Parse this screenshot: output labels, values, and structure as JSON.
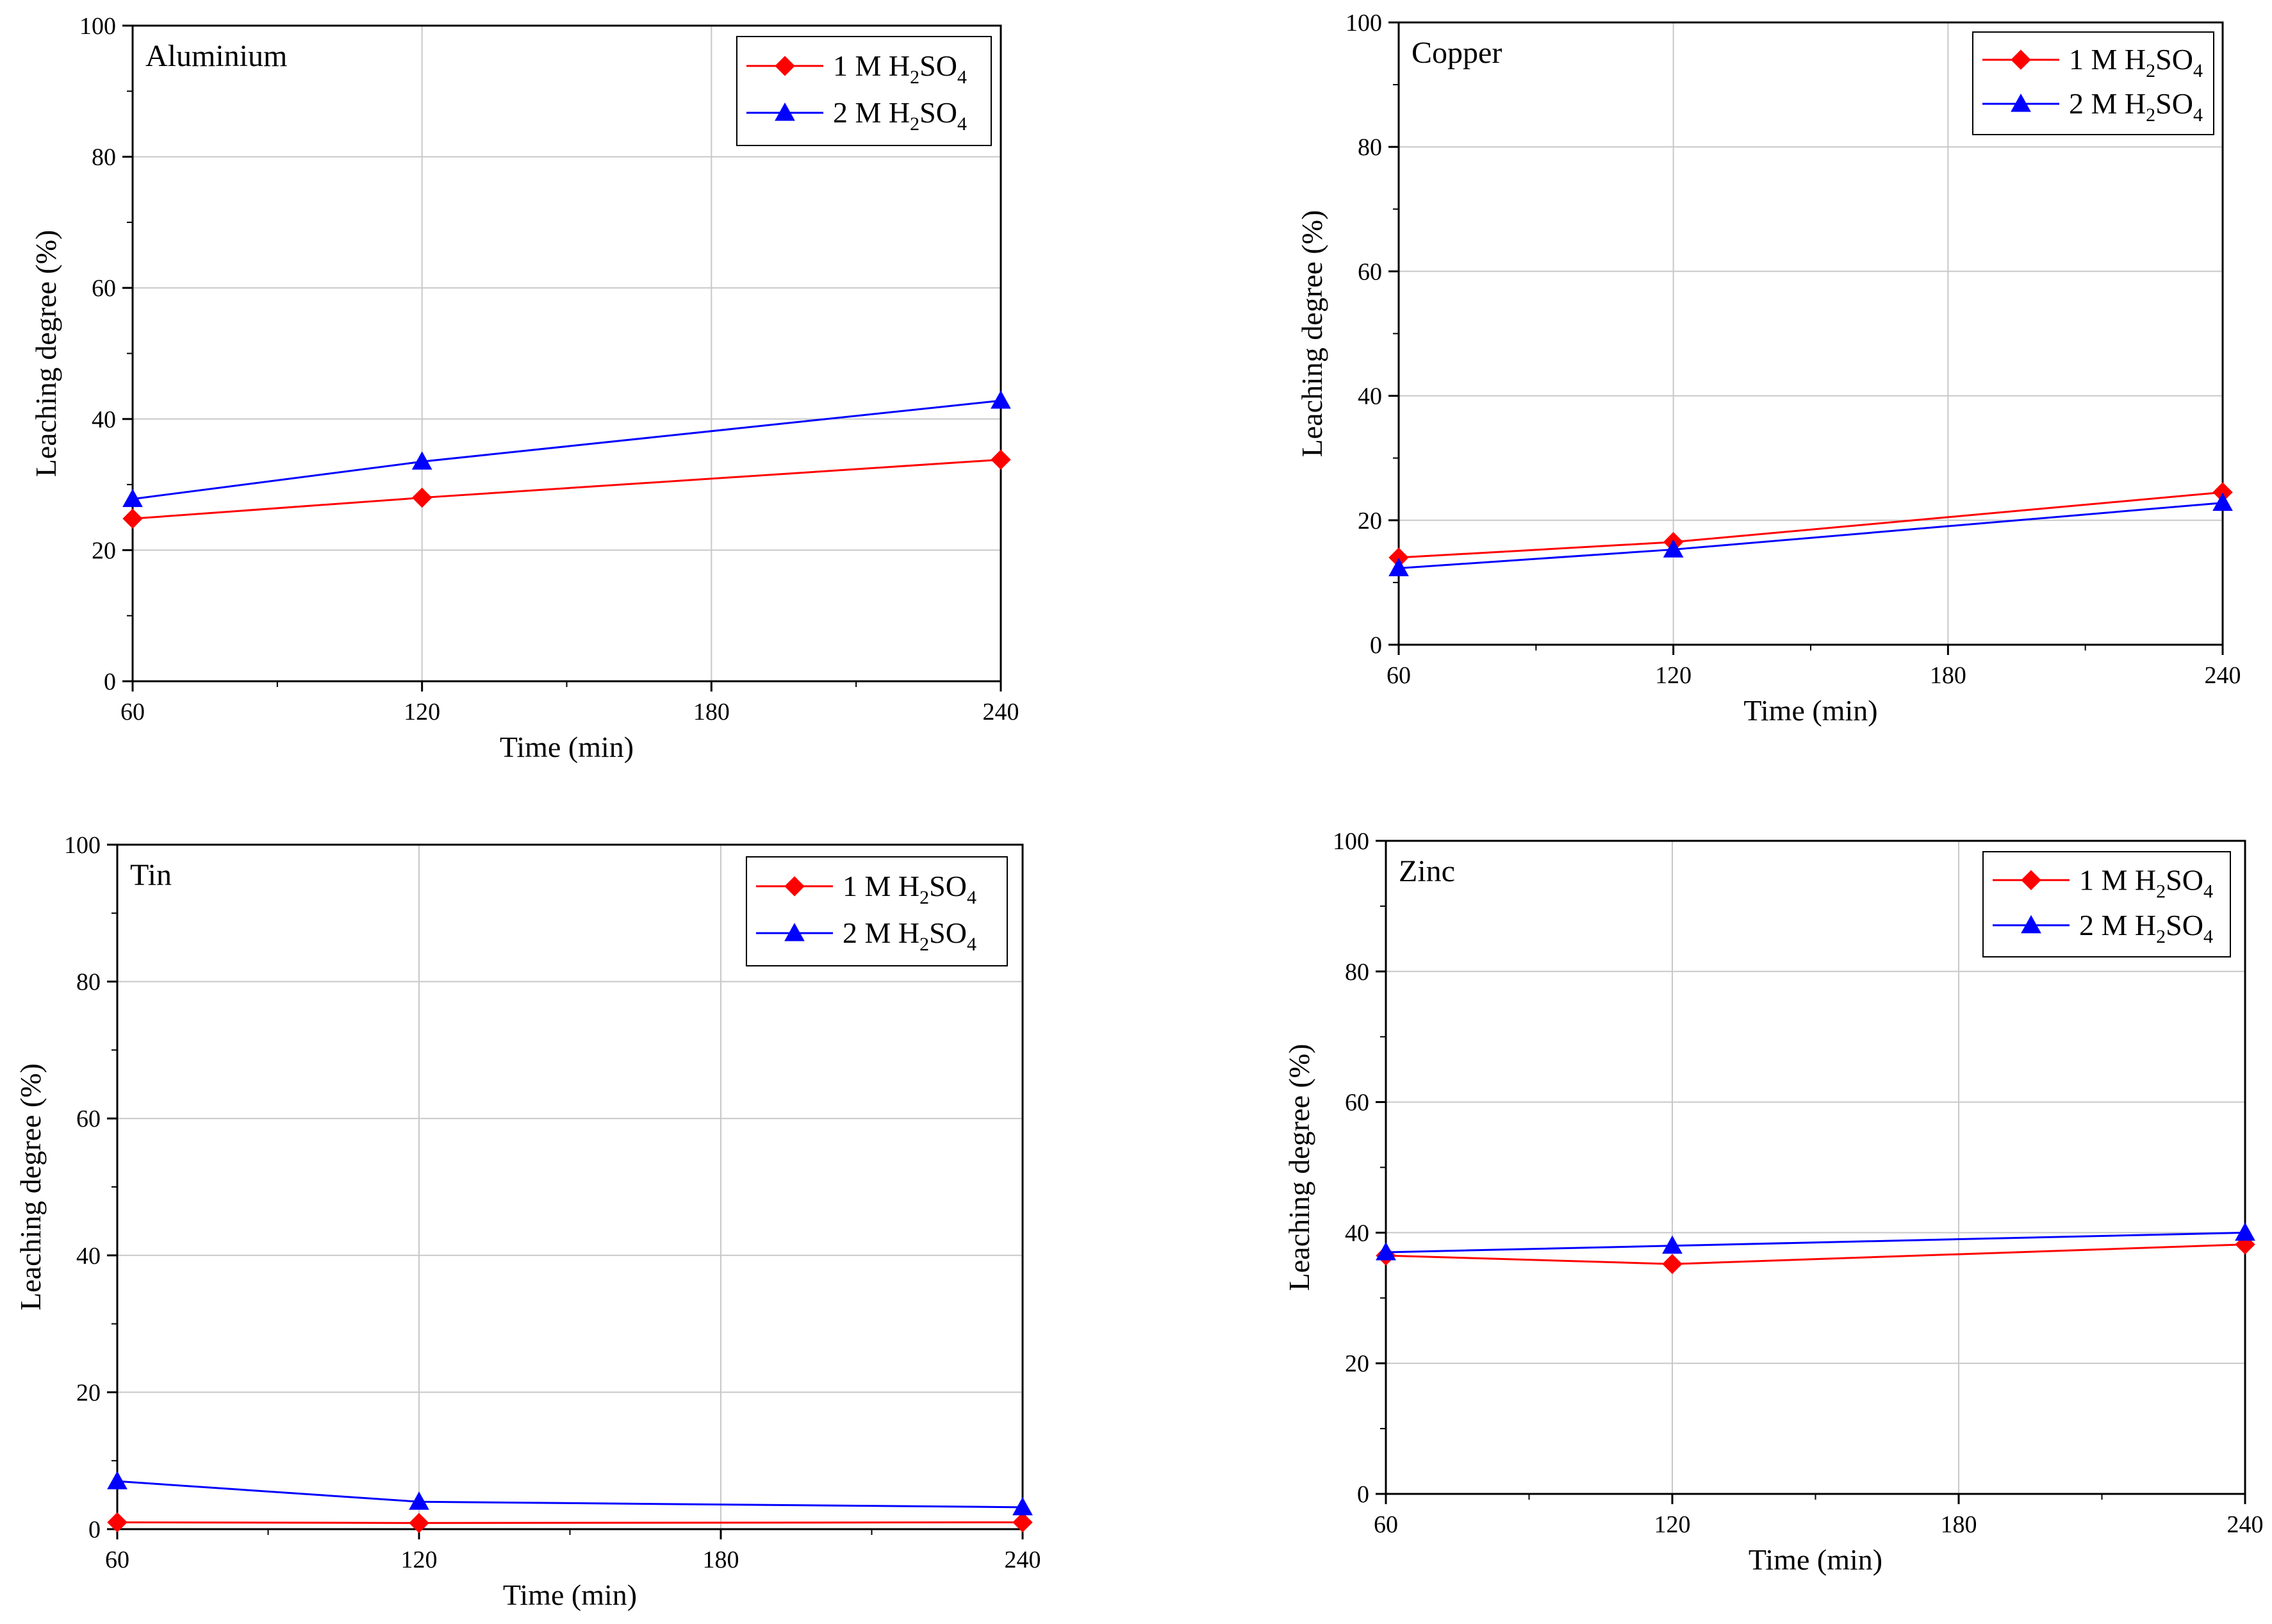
{
  "chart_data": [
    {
      "type": "line",
      "title": "Aluminium",
      "xlabel": "Time (min)",
      "ylabel": "Leaching degree (%)",
      "xlim": [
        60,
        240
      ],
      "ylim": [
        0,
        100
      ],
      "xticks": [
        60,
        120,
        180,
        240
      ],
      "yticks": [
        0,
        20,
        40,
        60,
        80,
        100
      ],
      "grid": true,
      "legend_position": "top-right",
      "x": [
        60,
        120,
        240
      ],
      "series": [
        {
          "name": "1 M H2SO4",
          "label_parts": [
            "1 M H",
            "2",
            "SO",
            "4"
          ],
          "color": "#ff0000",
          "marker": "diamond",
          "values": [
            24.8,
            28.0,
            33.8
          ]
        },
        {
          "name": "2 M H2SO4",
          "label_parts": [
            "2 M H",
            "2",
            "SO",
            "4"
          ],
          "color": "#0000ff",
          "marker": "triangle",
          "values": [
            27.8,
            33.5,
            42.8
          ]
        }
      ]
    },
    {
      "type": "line",
      "title": "Copper",
      "xlabel": "Time (min)",
      "ylabel": "Leaching degree (%)",
      "xlim": [
        60,
        240
      ],
      "ylim": [
        0,
        100
      ],
      "xticks": [
        60,
        120,
        180,
        240
      ],
      "yticks": [
        0,
        20,
        40,
        60,
        80,
        100
      ],
      "grid": true,
      "legend_position": "top-right",
      "x": [
        60,
        120,
        240
      ],
      "series": [
        {
          "name": "1 M H2SO4",
          "label_parts": [
            "1 M H",
            "2",
            "SO",
            "4"
          ],
          "color": "#ff0000",
          "marker": "diamond",
          "values": [
            14.0,
            16.5,
            24.5
          ]
        },
        {
          "name": "2 M H2SO4",
          "label_parts": [
            "2 M H",
            "2",
            "SO",
            "4"
          ],
          "color": "#0000ff",
          "marker": "triangle",
          "values": [
            12.3,
            15.3,
            22.8
          ]
        }
      ]
    },
    {
      "type": "line",
      "title": "Tin",
      "xlabel": "Time (min)",
      "ylabel": "Leaching degree (%)",
      "xlim": [
        60,
        240
      ],
      "ylim": [
        0,
        100
      ],
      "xticks": [
        60,
        120,
        180,
        240
      ],
      "yticks": [
        0,
        20,
        40,
        60,
        80,
        100
      ],
      "grid": true,
      "legend_position": "top-right",
      "x": [
        60,
        120,
        240
      ],
      "series": [
        {
          "name": "1 M H2SO4",
          "label_parts": [
            "1 M H",
            "2",
            "SO",
            "4"
          ],
          "color": "#ff0000",
          "marker": "diamond",
          "values": [
            1.0,
            0.9,
            1.0
          ]
        },
        {
          "name": "2 M H2SO4",
          "label_parts": [
            "2 M H",
            "2",
            "SO",
            "4"
          ],
          "color": "#0000ff",
          "marker": "triangle",
          "values": [
            7.0,
            4.0,
            3.2
          ]
        }
      ]
    },
    {
      "type": "line",
      "title": "Zinc",
      "xlabel": "Time (min)",
      "ylabel": "Leaching degree (%)",
      "xlim": [
        60,
        240
      ],
      "ylim": [
        0,
        100
      ],
      "xticks": [
        60,
        120,
        180,
        240
      ],
      "yticks": [
        0,
        20,
        40,
        60,
        80,
        100
      ],
      "grid": true,
      "legend_position": "top-right",
      "x": [
        60,
        120,
        240
      ],
      "series": [
        {
          "name": "1 M H2SO4",
          "label_parts": [
            "1 M H",
            "2",
            "SO",
            "4"
          ],
          "color": "#ff0000",
          "marker": "diamond",
          "values": [
            36.5,
            35.2,
            38.2
          ]
        },
        {
          "name": "2 M H2SO4",
          "label_parts": [
            "2 M H",
            "2",
            "SO",
            "4"
          ],
          "color": "#0000ff",
          "marker": "triangle",
          "values": [
            37.0,
            38.0,
            40.0
          ]
        }
      ]
    }
  ]
}
